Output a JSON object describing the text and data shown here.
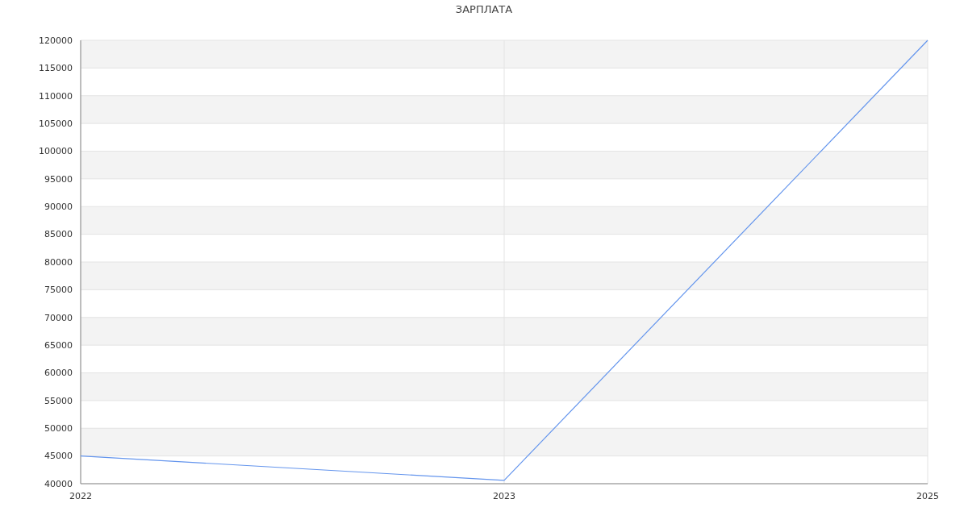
{
  "chart_data": {
    "type": "line",
    "title": "ЗАРПЛАТА",
    "categories": [
      "2022",
      "2023",
      "2025"
    ],
    "series": [
      {
        "color": "#6495ed",
        "values": [
          45000,
          40600,
          120000
        ]
      }
    ],
    "ylim": [
      40000,
      120000
    ],
    "yticks": [
      40000,
      45000,
      50000,
      55000,
      60000,
      65000,
      70000,
      75000,
      80000,
      85000,
      90000,
      95000,
      100000,
      105000,
      110000,
      115000,
      120000
    ],
    "grid": true,
    "marker": "none",
    "line_style": "solid"
  }
}
